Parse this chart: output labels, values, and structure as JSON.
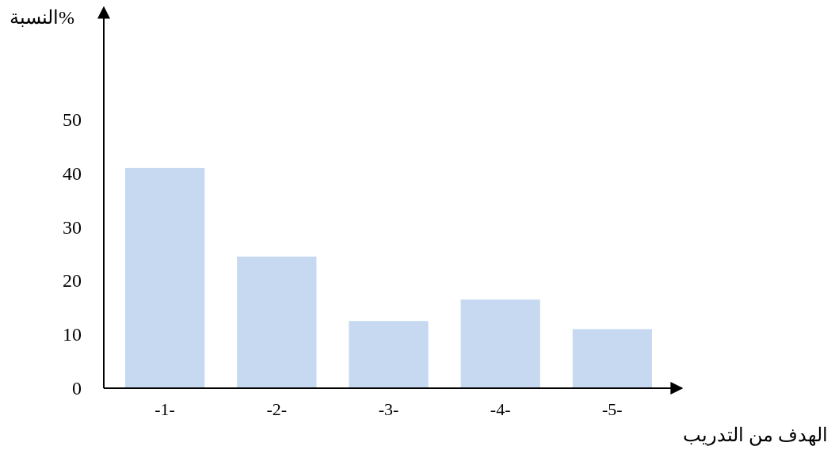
{
  "chart_data": {
    "type": "bar",
    "xlabel": "الهدف من التدريب",
    "ylabel": "النسبة%",
    "categories": [
      "-1-",
      "-2-",
      "-3-",
      "-4-",
      "-5-"
    ],
    "values": [
      41,
      24.5,
      12.5,
      16.5,
      11
    ],
    "color": "#c6d9f1",
    "ylim": [
      0,
      69
    ],
    "yticks": [
      0,
      10,
      20,
      30,
      40,
      50
    ],
    "grid": false
  }
}
